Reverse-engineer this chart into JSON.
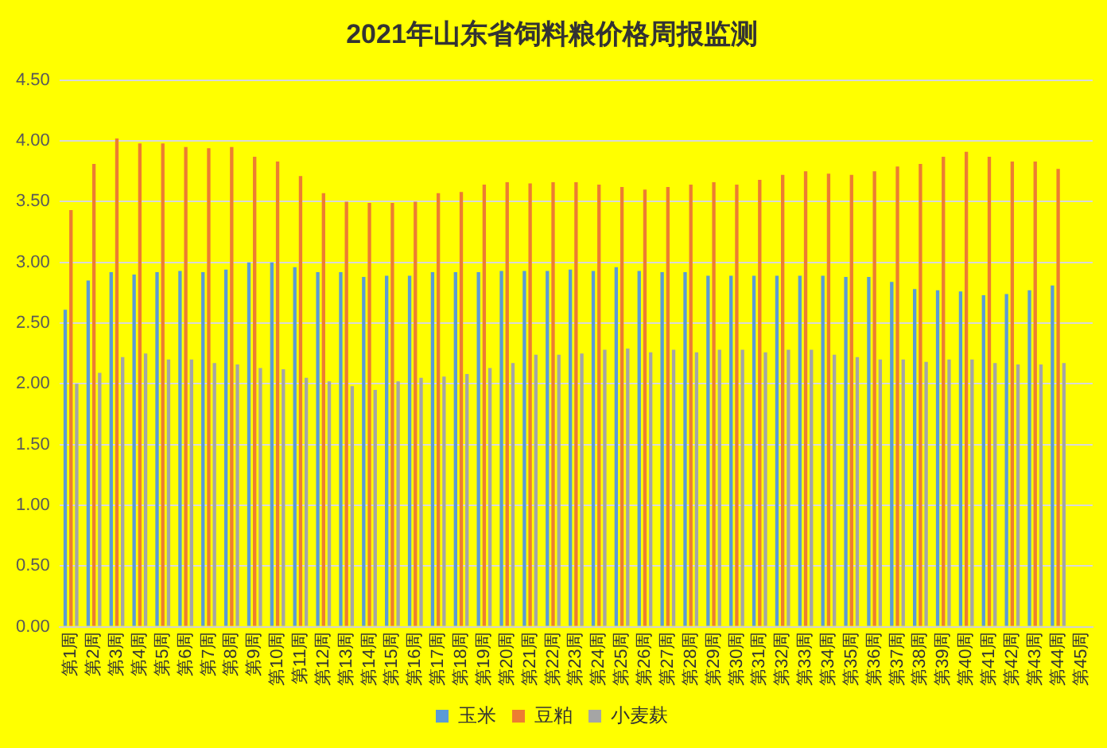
{
  "chart_data": {
    "type": "bar",
    "title": "2021年山东省饲料粮价格周报监测",
    "categories": [
      "第1周",
      "第2周",
      "第3周",
      "第4周",
      "第5周",
      "第6周",
      "第7周",
      "第8周",
      "第9周",
      "第10周",
      "第11周",
      "第12周",
      "第13周",
      "第14周",
      "第15周",
      "第16周",
      "第17周",
      "第18周",
      "第19周",
      "第20周",
      "第21周",
      "第22周",
      "第23周",
      "第24周",
      "第25周",
      "第26周",
      "第27周",
      "第28周",
      "第29周",
      "第30周",
      "第31周",
      "第32周",
      "第33周",
      "第34周",
      "第35周",
      "第36周",
      "第37周",
      "第38周",
      "第39周",
      "第40周",
      "第41周",
      "第42周",
      "第43周",
      "第44周",
      "第45周"
    ],
    "series": [
      {
        "name": "玉米",
        "color": "#5b9bd5",
        "values": [
          2.61,
          2.85,
          2.92,
          2.9,
          2.92,
          2.93,
          2.92,
          2.94,
          3.0,
          3.0,
          2.96,
          2.92,
          2.92,
          2.88,
          2.89,
          2.89,
          2.92,
          2.92,
          2.92,
          2.93,
          2.93,
          2.93,
          2.94,
          2.93,
          2.96,
          2.93,
          2.92,
          2.92,
          2.89,
          2.89,
          2.89,
          2.89,
          2.89,
          2.89,
          2.88,
          2.88,
          2.84,
          2.78,
          2.77,
          2.76,
          2.73,
          2.74,
          2.77,
          2.81,
          null
        ]
      },
      {
        "name": "豆粕",
        "color": "#ed7d31",
        "values": [
          3.43,
          3.81,
          4.02,
          3.98,
          3.98,
          3.95,
          3.94,
          3.95,
          3.87,
          3.83,
          3.71,
          3.57,
          3.5,
          3.49,
          3.49,
          3.5,
          3.57,
          3.58,
          3.64,
          3.66,
          3.65,
          3.66,
          3.66,
          3.64,
          3.62,
          3.6,
          3.62,
          3.64,
          3.66,
          3.64,
          3.68,
          3.72,
          3.75,
          3.73,
          3.72,
          3.75,
          3.79,
          3.81,
          3.87,
          3.91,
          3.87,
          3.83,
          3.83,
          3.77,
          null
        ]
      },
      {
        "name": "小麦麸",
        "color": "#a5a5a5",
        "values": [
          2.0,
          2.09,
          2.22,
          2.25,
          2.2,
          2.2,
          2.17,
          2.16,
          2.13,
          2.12,
          2.05,
          2.02,
          1.98,
          1.95,
          2.02,
          2.05,
          2.06,
          2.08,
          2.13,
          2.17,
          2.24,
          2.24,
          2.25,
          2.28,
          2.29,
          2.26,
          2.28,
          2.26,
          2.28,
          2.28,
          2.26,
          2.28,
          2.28,
          2.24,
          2.22,
          2.2,
          2.2,
          2.18,
          2.2,
          2.2,
          2.17,
          2.16,
          2.16,
          2.17,
          null
        ]
      }
    ],
    "ylim": [
      0,
      4.5
    ],
    "yticks": [
      {
        "value": 0,
        "label": "0.00"
      },
      {
        "value": 0.5,
        "label": "0.50"
      },
      {
        "value": 1,
        "label": "1.00"
      },
      {
        "value": 1.5,
        "label": "1.50"
      },
      {
        "value": 2,
        "label": "2.00"
      },
      {
        "value": 2.5,
        "label": "2.50"
      },
      {
        "value": 3,
        "label": "3.00"
      },
      {
        "value": 3.5,
        "label": "3.50"
      },
      {
        "value": 4,
        "label": "4.00"
      },
      {
        "value": 4.5,
        "label": "4.50"
      }
    ],
    "grid": "y",
    "legend": "bottom"
  }
}
